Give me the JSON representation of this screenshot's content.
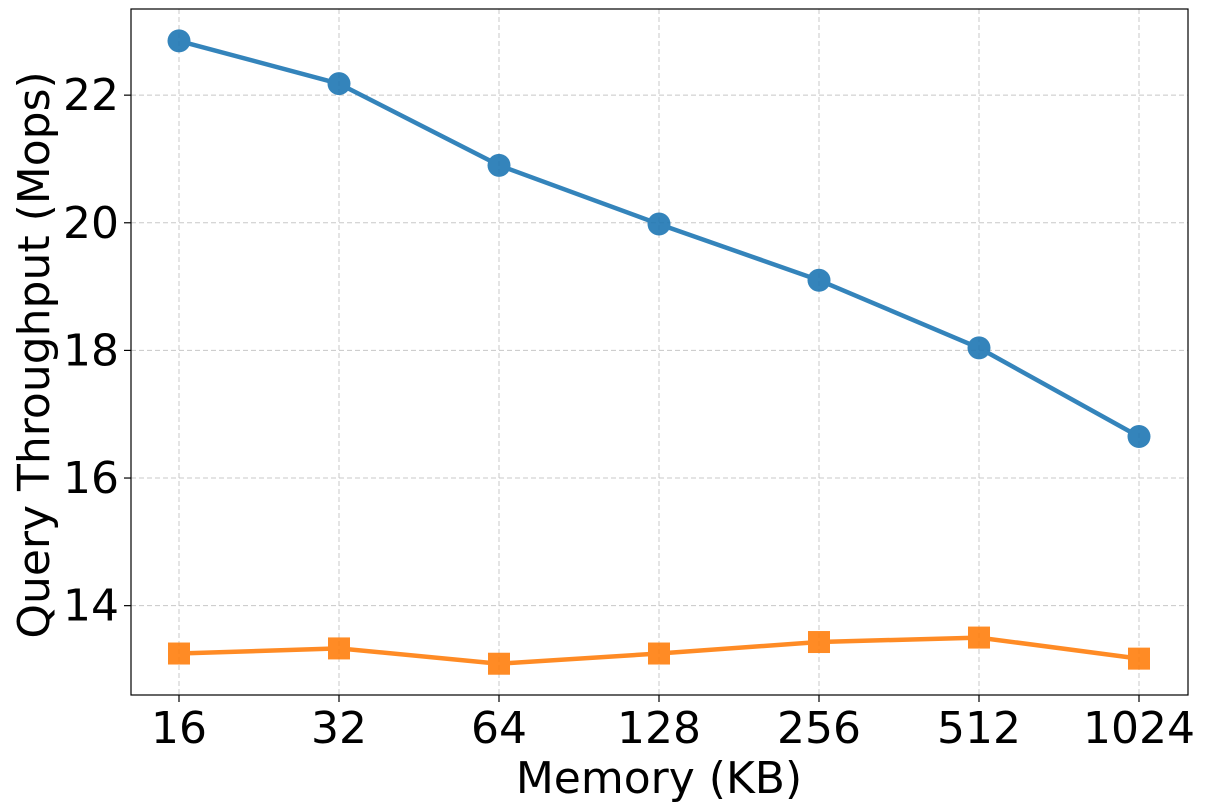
{
  "chart_data": {
    "type": "line",
    "title": "",
    "xlabel": "Memory (KB)",
    "ylabel": "Query Throughput (Mops)",
    "categories": [
      "16",
      "32",
      "64",
      "128",
      "256",
      "512",
      "1024"
    ],
    "ylim": [
      12.6,
      23.35
    ],
    "yticks": [
      14,
      16,
      18,
      20,
      22
    ],
    "grid": true,
    "series": [
      {
        "color": "#1f77b4",
        "marker": "circle",
        "values": [
          22.85,
          22.18,
          20.9,
          19.98,
          19.1,
          18.04,
          16.65
        ]
      },
      {
        "color": "#ff7f0e",
        "marker": "square",
        "values": [
          13.25,
          13.33,
          13.09,
          13.25,
          13.43,
          13.5,
          13.17
        ]
      }
    ]
  }
}
